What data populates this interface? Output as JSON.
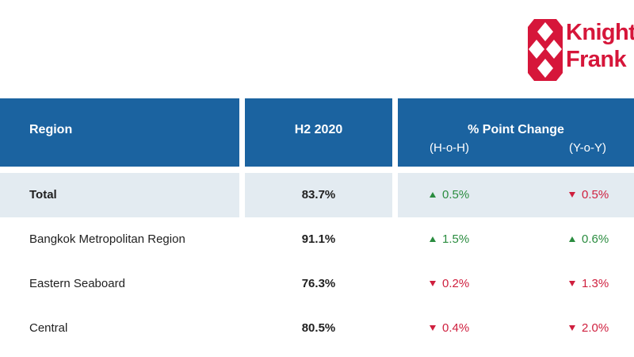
{
  "logo": {
    "line1": "Knight",
    "line2": "Frank",
    "color": "#d6163a"
  },
  "table": {
    "header": {
      "region": "Region",
      "h2_2020": "H2 2020",
      "point_change": "% Point Change",
      "hoh": "(H-o-H)",
      "yoy": "(Y-o-Y)"
    },
    "rows": [
      {
        "region": "Total",
        "share": "83.7%",
        "hoh": "0.5%",
        "hoh_dir": "up",
        "yoy": "0.5%",
        "yoy_dir": "down"
      },
      {
        "region": "Bangkok Metropolitan Region",
        "share": "91.1%",
        "hoh": "1.5%",
        "hoh_dir": "up",
        "yoy": "0.6%",
        "yoy_dir": "up"
      },
      {
        "region": "Eastern Seaboard",
        "share": "76.3%",
        "hoh": "0.2%",
        "hoh_dir": "down",
        "yoy": "1.3%",
        "yoy_dir": "down"
      },
      {
        "region": "Central",
        "share": "80.5%",
        "hoh": "0.4%",
        "hoh_dir": "down",
        "yoy": "2.0%",
        "yoy_dir": "down"
      }
    ]
  },
  "colors": {
    "header_bg": "#1b63a0",
    "total_bg": "#e3ebf1",
    "up": "#2a8c3f",
    "down": "#cf1f3e"
  }
}
